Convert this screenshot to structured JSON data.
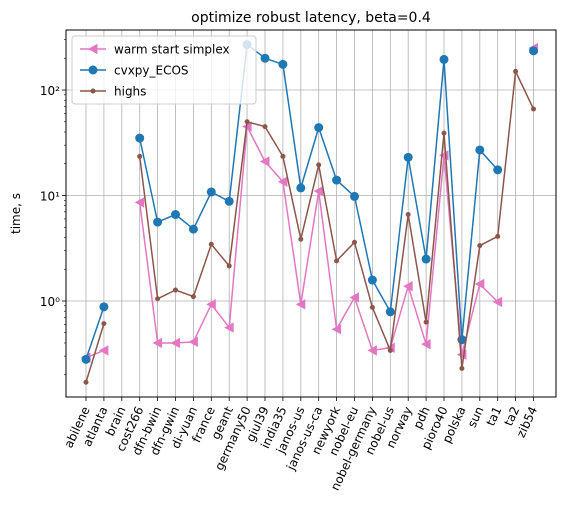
{
  "chart_data": {
    "type": "line",
    "title": "optimize robust latency, beta=0.4",
    "xlabel": "",
    "ylabel": "time, s",
    "yscale": "log",
    "ylim": [
      0.12,
      380
    ],
    "yticks": [
      {
        "value": 1,
        "label": "10⁰"
      },
      {
        "value": 10,
        "label": "10¹"
      },
      {
        "value": 100,
        "label": "10²"
      }
    ],
    "grid": true,
    "legend_position": "top-left",
    "categories": [
      "abilene",
      "atlanta",
      "brain",
      "cost266",
      "dfn-bwin",
      "dfn-gwin",
      "di-yuan",
      "france",
      "geant",
      "germany50",
      "giul39",
      "india35",
      "janos-us",
      "janos-us-ca",
      "newyork",
      "nobel-eu",
      "nobel-germany",
      "nobel-us",
      "norway",
      "pdh",
      "pioro40",
      "polska",
      "sun",
      "ta1",
      "ta2",
      "zib54"
    ],
    "series": [
      {
        "name": "warm start simplex",
        "color": "#e377c2",
        "marker": "triangle-left",
        "values": [
          0.29,
          0.34,
          null,
          8.6,
          0.4,
          0.4,
          0.41,
          0.93,
          0.56,
          45,
          21,
          13.5,
          0.93,
          11,
          0.54,
          1.08,
          0.34,
          0.36,
          1.38,
          0.39,
          24,
          0.31,
          1.45,
          0.98,
          null,
          250
        ]
      },
      {
        "name": "cvxpy_ECOS",
        "color": "#1f77b4",
        "marker": "circle",
        "values": [
          0.28,
          0.88,
          null,
          35,
          5.6,
          6.6,
          4.8,
          10.8,
          8.8,
          270,
          200,
          175,
          11.8,
          44,
          14,
          9.8,
          1.58,
          0.79,
          23,
          2.5,
          195,
          0.43,
          27,
          17.5,
          null,
          235
        ]
      },
      {
        "name": "highs",
        "color": "#8c564b",
        "marker": "point",
        "values": [
          0.17,
          0.61,
          null,
          23.5,
          1.05,
          1.27,
          1.1,
          3.45,
          2.15,
          50,
          45,
          23.5,
          3.85,
          19.5,
          2.4,
          3.6,
          0.87,
          0.34,
          6.6,
          0.63,
          39,
          0.23,
          3.35,
          4.1,
          150,
          66
        ]
      }
    ]
  }
}
